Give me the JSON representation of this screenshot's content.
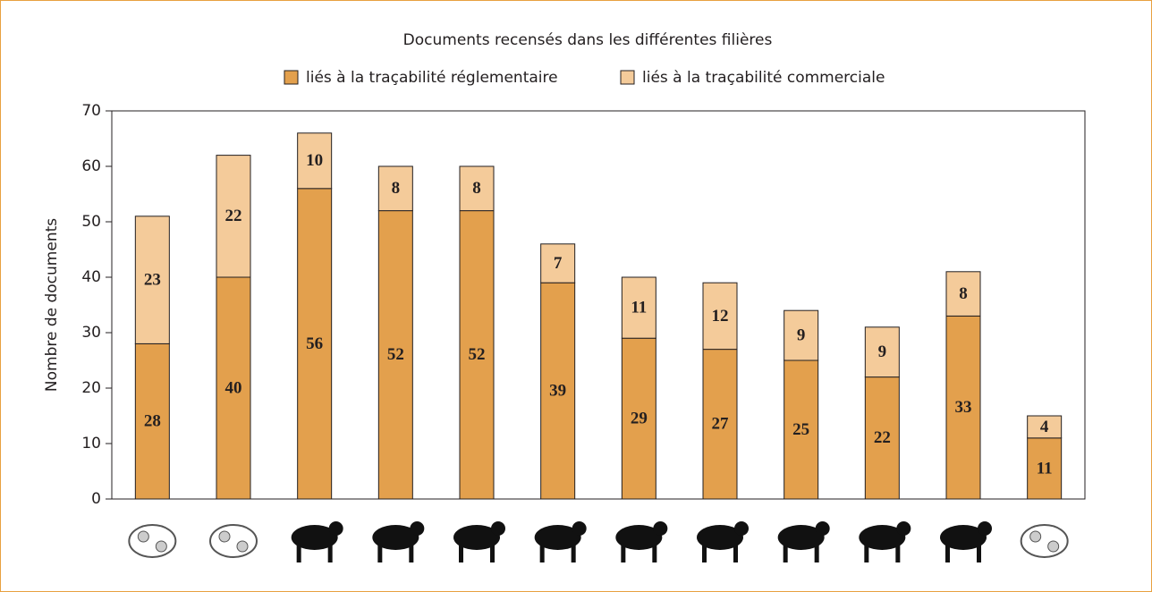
{
  "chart_data": {
    "type": "stacked-bar",
    "title": "Documents recensés dans les différentes filières",
    "ylabel": "Nombre de documents",
    "categories": [
      null,
      null,
      null,
      null,
      null,
      null,
      null,
      null,
      null,
      null,
      null,
      null
    ],
    "series": [
      {
        "name": "liés à la traçabilité réglementaire",
        "color": "#e3a04d",
        "values": [
          28,
          40,
          56,
          52,
          52,
          39,
          29,
          27,
          25,
          22,
          33,
          11
        ]
      },
      {
        "name": "liés à la traçabilité commerciale",
        "color": "#f4cb9a",
        "values": [
          23,
          22,
          10,
          8,
          8,
          7,
          11,
          12,
          9,
          9,
          8,
          4
        ]
      }
    ],
    "ylim": [
      0,
      70
    ],
    "yticks": [
      0,
      10,
      20,
      30,
      40,
      50,
      60,
      70
    ],
    "grid": false
  }
}
